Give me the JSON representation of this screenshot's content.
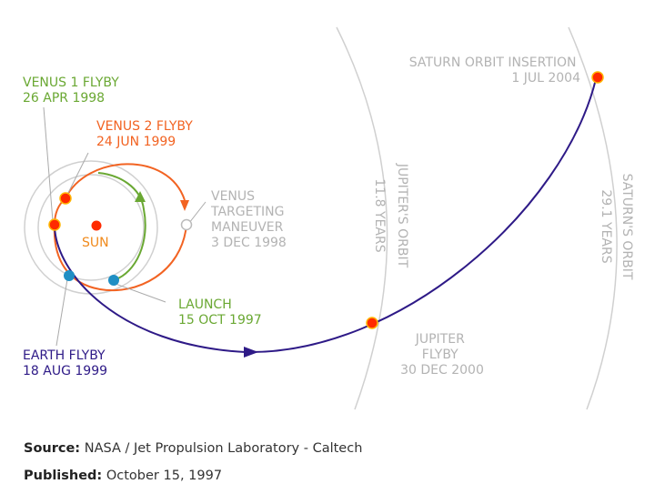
{
  "colors": {
    "trajectory_red": "#f26322",
    "trajectory_green": "#6aa833",
    "trajectory_purple": "#2e1a87",
    "orbit_gray": "#d0d0d0",
    "label_gray": "#b3b3b3",
    "sun_text": "#f08a1c",
    "event_red": "#ff2a00",
    "event_blue": "#1f8fc4"
  },
  "labels": {
    "venus1": {
      "line1": "VENUS 1 FLYBY",
      "line2": "26 APR 1998"
    },
    "venus2": {
      "line1": "VENUS 2 FLYBY",
      "line2": "24 JUN 1999"
    },
    "sun": "SUN",
    "venus_targeting": {
      "line1": "VENUS",
      "line2": "TARGETING",
      "line3": "MANEUVER",
      "line4": "3 DEC 1998"
    },
    "launch": {
      "line1": "LAUNCH",
      "line2": "15 OCT 1997"
    },
    "earth_flyby": {
      "line1": "EARTH FLYBY",
      "line2": "18 AUG 1999"
    },
    "jupiter_flyby": {
      "line1": "JUPITER",
      "line2": "FLYBY",
      "line3": "30 DEC 2000"
    },
    "saturn_insertion": {
      "line1": "SATURN ORBIT INSERTION",
      "line2": "1 JUL 2004"
    },
    "jupiter_orbit": {
      "name": "JUPITER'S ORBIT",
      "period": "11.8 YEARS"
    },
    "saturn_orbit": {
      "name": "SATURN'S ORBIT",
      "period": "29.1 YEARS"
    }
  },
  "credits": {
    "source_label": "Source:",
    "source_value": "NASA / Jet Propulsion Laboratory - Caltech",
    "published_label": "Published:",
    "published_value": "October 15, 1997"
  }
}
